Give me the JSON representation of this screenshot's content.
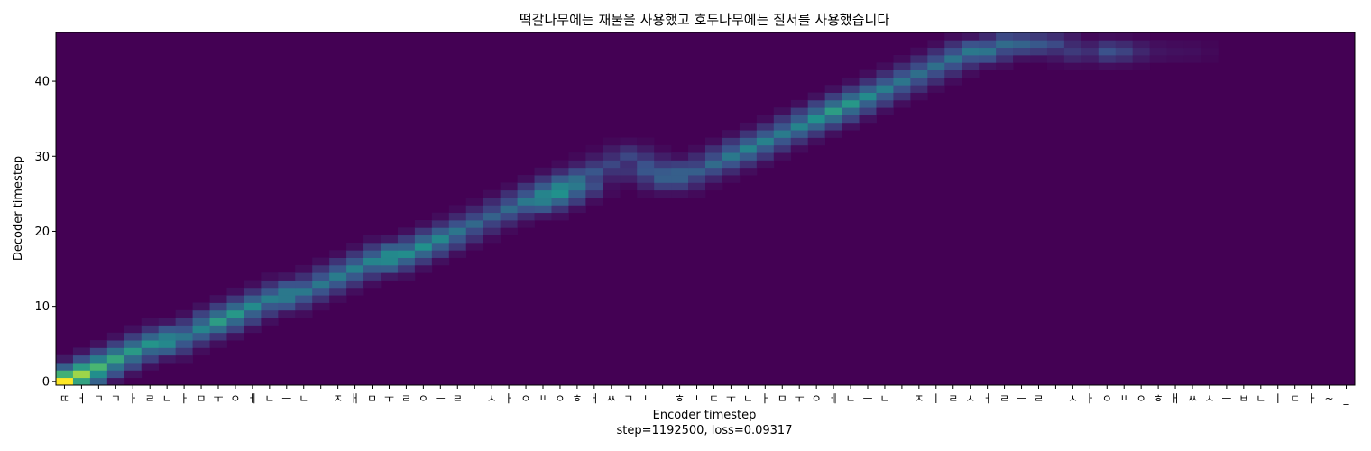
{
  "chart_data": {
    "type": "heatmap",
    "title": "떡갈나무에는 재물을 사용했고 호두나무에는 질서를 사용했습니다",
    "xlabel": "Encoder timestep",
    "ylabel": "Decoder timestep",
    "footer": "step=1192500, loss=0.09317",
    "colormap": "viridis",
    "background_color": "#440154",
    "ylim": [
      0,
      47
    ],
    "y_ticks": [
      0,
      10,
      20,
      30,
      40
    ],
    "y_tick_labels": [
      "0",
      "10",
      "20",
      "30",
      "40"
    ],
    "x_tick_labels": [
      "ㄸ",
      "ㅓ",
      "ㄱ",
      "ㄱ",
      "ㅏ",
      "ㄹ",
      "ㄴ",
      "ㅏ",
      "ㅁ",
      "ㅜ",
      "ㅇ",
      "ㅔ",
      "ㄴ",
      "ㅡ",
      "ㄴ",
      " ",
      "ㅈ",
      "ㅐ",
      "ㅁ",
      "ㅜ",
      "ㄹ",
      "ㅇ",
      "ㅡ",
      "ㄹ",
      " ",
      "ㅅ",
      "ㅏ",
      "ㅇ",
      "ㅛ",
      "ㅇ",
      "ㅎ",
      "ㅐ",
      "ㅆ",
      "ㄱ",
      "ㅗ",
      " ",
      "ㅎ",
      "ㅗ",
      "ㄷ",
      "ㅜ",
      "ㄴ",
      "ㅏ",
      "ㅁ",
      "ㅜ",
      "ㅇ",
      "ㅔ",
      "ㄴ",
      "ㅡ",
      "ㄴ",
      " ",
      "ㅈ",
      "ㅣ",
      "ㄹ",
      "ㅅ",
      "ㅓ",
      "ㄹ",
      "ㅡ",
      "ㄹ",
      " ",
      "ㅅ",
      "ㅏ",
      "ㅇ",
      "ㅛ",
      "ㅇ",
      "ㅎ",
      "ㅐ",
      "ㅆ",
      "ㅅ",
      "ㅡ",
      "ㅂ",
      "ㄴ",
      "ㅣ",
      "ㄷ",
      "ㅏ",
      "~",
      "_"
    ],
    "alignment_path": [
      {
        "encoder": 0,
        "decoder": 0,
        "weight": 1.0
      },
      {
        "encoder": 1,
        "decoder": 1,
        "weight": 0.7
      },
      {
        "encoder": 3,
        "decoder": 3,
        "weight": 0.55
      },
      {
        "encoder": 5,
        "decoder": 5,
        "weight": 0.5
      },
      {
        "encoder": 7,
        "decoder": 6,
        "weight": 0.35
      },
      {
        "encoder": 9,
        "decoder": 8,
        "weight": 0.55
      },
      {
        "encoder": 12,
        "decoder": 11,
        "weight": 0.4
      },
      {
        "encoder": 15,
        "decoder": 13,
        "weight": 0.4
      },
      {
        "encoder": 18,
        "decoder": 16,
        "weight": 0.45
      },
      {
        "encoder": 21,
        "decoder": 18,
        "weight": 0.5
      },
      {
        "encoder": 23,
        "decoder": 20,
        "weight": 0.35
      },
      {
        "encoder": 25,
        "decoder": 22,
        "weight": 0.3
      },
      {
        "encoder": 27,
        "decoder": 24,
        "weight": 0.4
      },
      {
        "encoder": 29,
        "decoder": 25,
        "weight": 0.5
      },
      {
        "encoder": 31,
        "decoder": 28,
        "weight": 0.22
      },
      {
        "encoder": 33,
        "decoder": 30,
        "weight": 0.2
      },
      {
        "encoder": 35,
        "decoder": 27,
        "weight": 0.3
      },
      {
        "encoder": 37,
        "decoder": 28,
        "weight": 0.3
      },
      {
        "encoder": 38,
        "decoder": 29,
        "weight": 0.35
      },
      {
        "encoder": 40,
        "decoder": 31,
        "weight": 0.45
      },
      {
        "encoder": 42,
        "decoder": 33,
        "weight": 0.4
      },
      {
        "encoder": 45,
        "decoder": 36,
        "weight": 0.55
      },
      {
        "encoder": 48,
        "decoder": 39,
        "weight": 0.4
      },
      {
        "encoder": 50,
        "decoder": 41,
        "weight": 0.35
      },
      {
        "encoder": 53,
        "decoder": 44,
        "weight": 0.4
      },
      {
        "encoder": 56,
        "decoder": 45,
        "weight": 0.3
      },
      {
        "encoder": 60,
        "decoder": 44,
        "weight": 0.1
      },
      {
        "encoder": 61,
        "decoder": 44,
        "weight": 0.25
      },
      {
        "encoder": 63,
        "decoder": 44,
        "weight": 0.06
      },
      {
        "encoder": 66,
        "decoder": 44,
        "weight": 0.04
      }
    ]
  }
}
